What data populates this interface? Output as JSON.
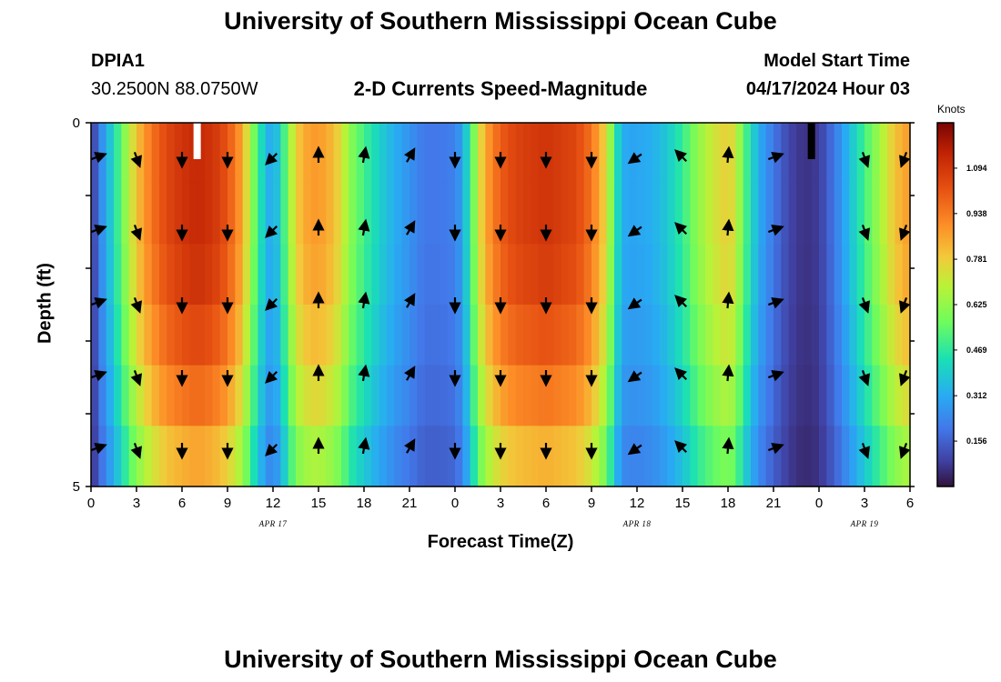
{
  "header": {
    "title": "University of Southern Mississippi Ocean Cube",
    "station_id": "DPIA1",
    "coordinates": "30.2500N  88.0750W",
    "model_start_label": "Model Start Time",
    "model_start_value": "04/17/2024 Hour 03"
  },
  "footer": {
    "title": "University of Southern Mississippi Ocean Cube"
  },
  "chart_data": {
    "type": "heatmap",
    "title": "2-D Currents Speed-Magnitude",
    "xlabel": "Forecast Time(Z)",
    "ylabel": "Depth (ft)",
    "x_range_hours": [
      0,
      54
    ],
    "y_range": [
      0,
      5
    ],
    "x_ticks": [
      {
        "h": 0,
        "label": "0"
      },
      {
        "h": 3,
        "label": "3"
      },
      {
        "h": 6,
        "label": "6"
      },
      {
        "h": 9,
        "label": "9"
      },
      {
        "h": 12,
        "label": "12"
      },
      {
        "h": 15,
        "label": "15"
      },
      {
        "h": 18,
        "label": "18"
      },
      {
        "h": 21,
        "label": "21"
      },
      {
        "h": 24,
        "label": "0"
      },
      {
        "h": 27,
        "label": "3"
      },
      {
        "h": 30,
        "label": "6"
      },
      {
        "h": 33,
        "label": "9"
      },
      {
        "h": 36,
        "label": "12"
      },
      {
        "h": 39,
        "label": "15"
      },
      {
        "h": 42,
        "label": "18"
      },
      {
        "h": 45,
        "label": "21"
      },
      {
        "h": 48,
        "label": "0"
      },
      {
        "h": 51,
        "label": "3"
      },
      {
        "h": 54,
        "label": "6"
      }
    ],
    "date_labels": [
      {
        "h": 12,
        "label": "APR 17"
      },
      {
        "h": 36,
        "label": "APR 18"
      },
      {
        "h": 51,
        "label": "APR 19"
      }
    ],
    "y_ticks": [
      {
        "value": 0,
        "label": "0"
      },
      {
        "value": 5,
        "label": "5"
      }
    ],
    "colorbar": {
      "label": "Knots",
      "min": 0.0,
      "max": 1.25,
      "ticks": [
        {
          "value": 0.156,
          "label": "0.156"
        },
        {
          "value": 0.312,
          "label": "0.312"
        },
        {
          "value": 0.469,
          "label": "0.469"
        },
        {
          "value": 0.625,
          "label": "0.625"
        },
        {
          "value": 0.781,
          "label": "0.781"
        },
        {
          "value": 0.938,
          "label": "0.938"
        },
        {
          "value": 1.094,
          "label": "1.094"
        }
      ]
    },
    "time_speed_profile": [
      [
        0,
        0.05
      ],
      [
        0.5,
        0.2
      ],
      [
        1,
        0.32
      ],
      [
        1.5,
        0.42
      ],
      [
        2,
        0.55
      ],
      [
        2.5,
        0.68
      ],
      [
        3,
        0.8
      ],
      [
        4,
        0.95
      ],
      [
        5,
        1.05
      ],
      [
        6,
        1.1
      ],
      [
        7,
        1.13
      ],
      [
        8,
        1.1
      ],
      [
        9,
        1.02
      ],
      [
        10,
        0.85
      ],
      [
        10.5,
        0.65
      ],
      [
        11,
        0.5
      ],
      [
        11.5,
        0.35
      ],
      [
        12,
        0.3
      ],
      [
        12.5,
        0.42
      ],
      [
        13,
        0.6
      ],
      [
        13.5,
        0.78
      ],
      [
        14.5,
        0.88
      ],
      [
        15.5,
        0.86
      ],
      [
        16.5,
        0.75
      ],
      [
        17,
        0.62
      ],
      [
        18,
        0.5
      ],
      [
        19,
        0.4
      ],
      [
        20,
        0.32
      ],
      [
        21,
        0.26
      ],
      [
        22,
        0.2
      ],
      [
        23,
        0.2
      ],
      [
        24,
        0.22
      ],
      [
        24.5,
        0.3
      ],
      [
        25,
        0.48
      ],
      [
        25.5,
        0.7
      ],
      [
        26,
        0.85
      ],
      [
        27,
        1.0
      ],
      [
        28,
        1.06
      ],
      [
        30,
        1.1
      ],
      [
        32,
        1.05
      ],
      [
        33,
        0.95
      ],
      [
        34,
        0.75
      ],
      [
        34.5,
        0.5
      ],
      [
        35,
        0.32
      ],
      [
        35.5,
        0.3
      ],
      [
        36,
        0.3
      ],
      [
        37,
        0.32
      ],
      [
        38,
        0.38
      ],
      [
        39,
        0.48
      ],
      [
        40,
        0.62
      ],
      [
        41,
        0.72
      ],
      [
        42,
        0.78
      ],
      [
        42.5,
        0.72
      ],
      [
        43,
        0.55
      ],
      [
        44,
        0.32
      ],
      [
        45,
        0.2
      ],
      [
        46,
        0.1
      ],
      [
        47,
        0.06
      ],
      [
        48,
        0.08
      ],
      [
        49,
        0.2
      ],
      [
        50,
        0.35
      ],
      [
        51,
        0.5
      ],
      [
        52,
        0.65
      ],
      [
        53,
        0.8
      ],
      [
        54,
        0.88
      ]
    ],
    "depth_factors": [
      1.0,
      1.0,
      0.98,
      0.93,
      0.86,
      0.76
    ],
    "vector_times": [
      0,
      3,
      6,
      9,
      12,
      15,
      18,
      21,
      24,
      27,
      30,
      33,
      36,
      39,
      42,
      45,
      48,
      51,
      54
    ],
    "vector_angles_deg": [
      70,
      160,
      180,
      180,
      225,
      0,
      10,
      30,
      180,
      180,
      180,
      180,
      235,
      315,
      5,
      70,
      null,
      160,
      200
    ],
    "vector_depths": [
      0.5,
      1.5,
      2.5,
      3.5,
      4.5
    ],
    "white_marker_hour": 7,
    "black_marker_hour": 47.5
  }
}
